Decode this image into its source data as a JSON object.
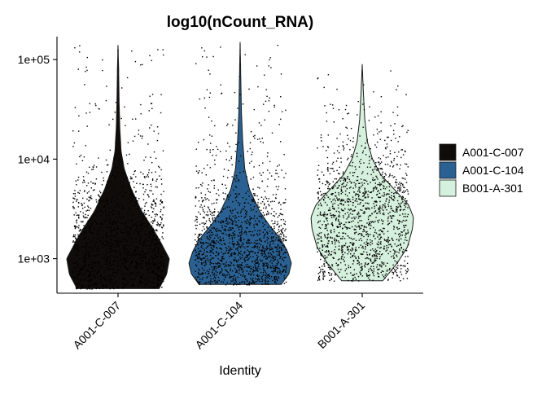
{
  "chart_data": {
    "type": "violin",
    "title": "log10(nCount_RNA)",
    "xlabel": "Identity",
    "ylabel": "",
    "y_scale": "log10",
    "ylim": [
      450,
      170000
    ],
    "y_ticks": [
      {
        "value": 1000,
        "label": "1e+03"
      },
      {
        "value": 10000,
        "label": "1e+04"
      },
      {
        "value": 100000,
        "label": "1e+05"
      }
    ],
    "grid": false,
    "legend_position": "right",
    "points_shown": true,
    "categories": [
      "A001-C-007",
      "A001-C-104",
      "B001-A-301"
    ],
    "series": [
      {
        "name": "A001-C-007",
        "color": "#100c0a",
        "min": 500,
        "max": 140000,
        "density_profile": [
          [
            500,
            0.8
          ],
          [
            700,
            0.95
          ],
          [
            1000,
            1.0
          ],
          [
            1500,
            0.82
          ],
          [
            2000,
            0.68
          ],
          [
            3000,
            0.46
          ],
          [
            5000,
            0.26
          ],
          [
            8000,
            0.12
          ],
          [
            12000,
            0.06
          ],
          [
            20000,
            0.035
          ],
          [
            40000,
            0.02
          ],
          [
            80000,
            0.012
          ],
          [
            140000,
            0.0
          ]
        ]
      },
      {
        "name": "A001-C-104",
        "color": "#2a6192",
        "min": 550,
        "max": 150000,
        "density_profile": [
          [
            550,
            0.8
          ],
          [
            700,
            0.95
          ],
          [
            900,
            1.0
          ],
          [
            1200,
            0.92
          ],
          [
            1600,
            0.78
          ],
          [
            2200,
            0.56
          ],
          [
            3000,
            0.38
          ],
          [
            5000,
            0.18
          ],
          [
            8000,
            0.09
          ],
          [
            15000,
            0.05
          ],
          [
            30000,
            0.025
          ],
          [
            70000,
            0.012
          ],
          [
            150000,
            0.0
          ]
        ]
      },
      {
        "name": "B001-A-301",
        "color": "#d5f0dc",
        "min": 600,
        "max": 90000,
        "density_profile": [
          [
            600,
            0.4
          ],
          [
            900,
            0.68
          ],
          [
            1300,
            0.88
          ],
          [
            2000,
            0.98
          ],
          [
            2600,
            1.0
          ],
          [
            3500,
            0.9
          ],
          [
            5000,
            0.62
          ],
          [
            7000,
            0.36
          ],
          [
            10000,
            0.2
          ],
          [
            15000,
            0.1
          ],
          [
            25000,
            0.05
          ],
          [
            50000,
            0.02
          ],
          [
            90000,
            0.0
          ]
        ]
      }
    ]
  }
}
